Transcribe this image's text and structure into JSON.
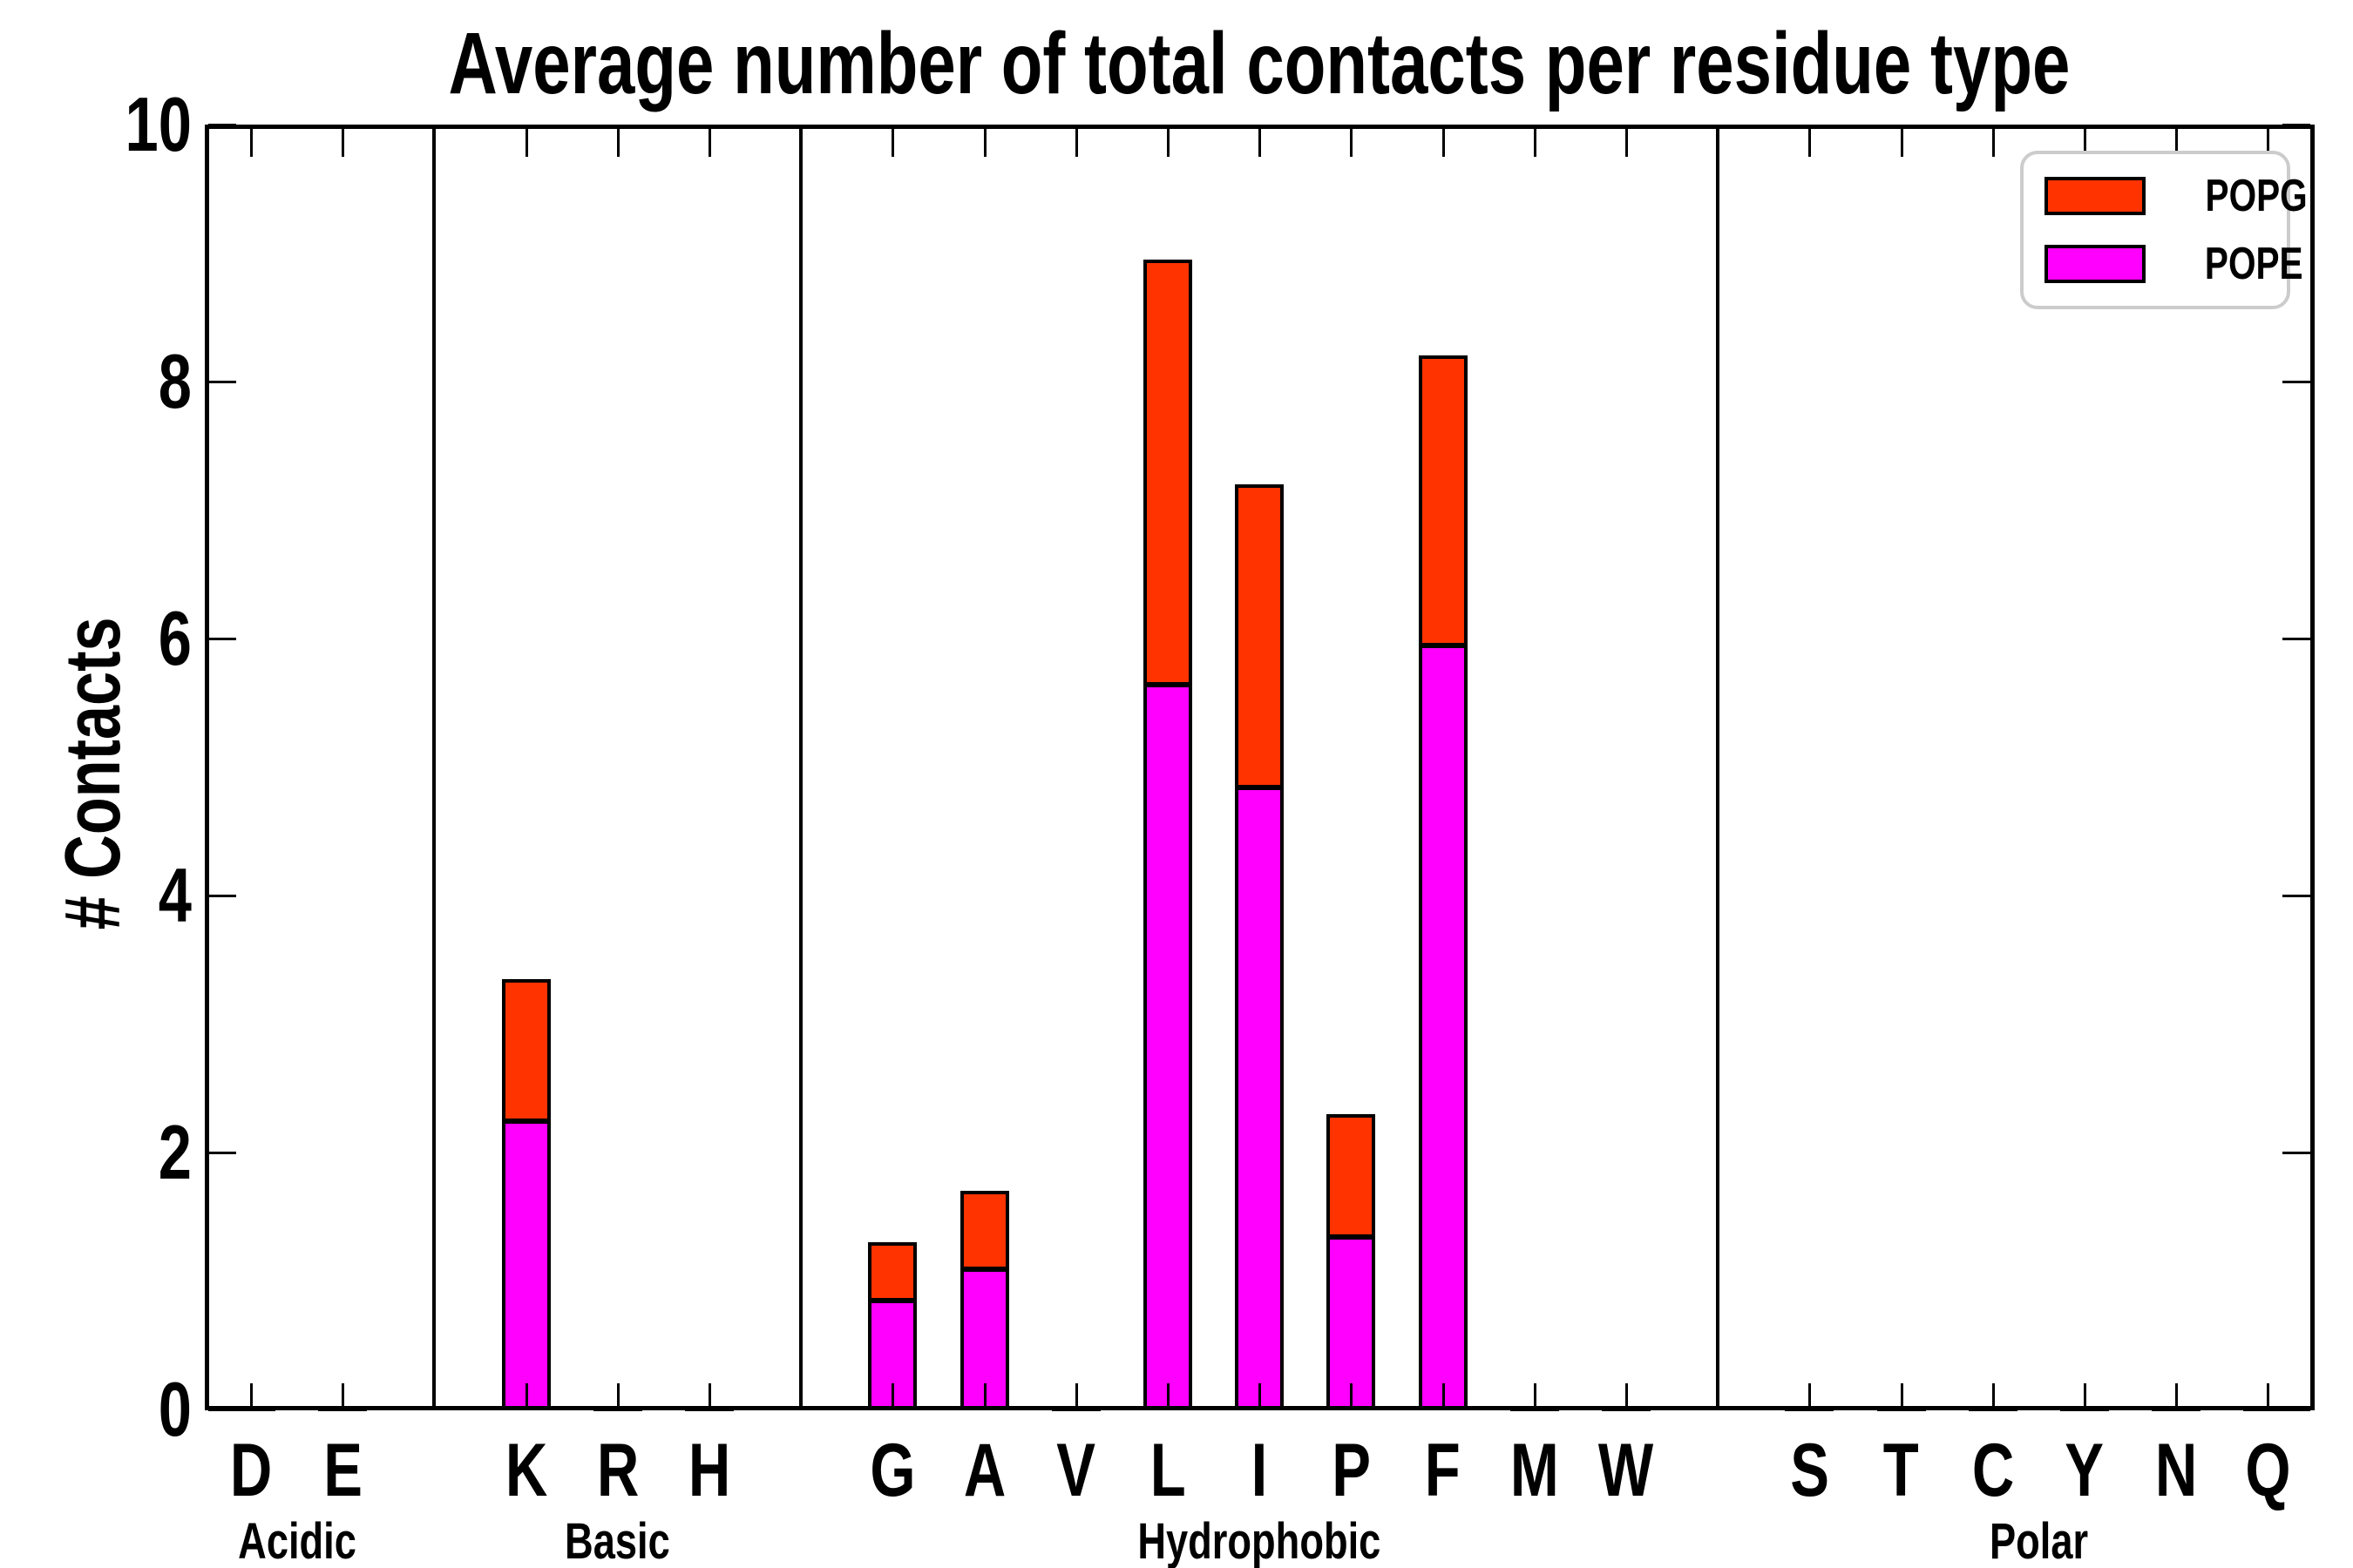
{
  "title": "Average number of total contacts per residue type",
  "y_axis_label": "# Contacts",
  "legend": {
    "items": [
      {
        "label": "POPG",
        "color": "#ff3300"
      },
      {
        "label": "POPE",
        "color": "#ff00ff"
      }
    ],
    "border_color": "#cccccc"
  },
  "colors": {
    "popg": "#ff3300",
    "pope": "#ff00ff",
    "axis": "#000000"
  },
  "chart_data": {
    "type": "bar",
    "stacked": true,
    "title": "Average number of total contacts per residue type",
    "ylabel": "# Contacts",
    "xlabel": "",
    "ylim": [
      0,
      10
    ],
    "yticks": [
      "0",
      "2",
      "4",
      "6",
      "8",
      "10"
    ],
    "grid": false,
    "legend_position": "upper right",
    "categories": [
      "D",
      "E",
      "K",
      "R",
      "H",
      "G",
      "A",
      "V",
      "L",
      "I",
      "P",
      "F",
      "M",
      "W",
      "S",
      "T",
      "C",
      "Y",
      "N",
      "Q"
    ],
    "groups": [
      {
        "name": "Acidic",
        "residues": [
          "D",
          "E"
        ]
      },
      {
        "name": "Basic",
        "residues": [
          "K",
          "R",
          "H"
        ]
      },
      {
        "name": "Hydrophobic",
        "residues": [
          "G",
          "A",
          "V",
          "L",
          "I",
          "P",
          "F",
          "M",
          "W"
        ]
      },
      {
        "name": "Polar",
        "residues": [
          "S",
          "T",
          "C",
          "Y",
          "N",
          "Q"
        ]
      }
    ],
    "series": [
      {
        "name": "POPE",
        "color": "#ff00ff",
        "values": [
          0,
          0,
          2.25,
          0,
          0,
          0.85,
          1.1,
          0,
          5.65,
          4.85,
          1.35,
          5.95,
          0,
          0,
          0,
          0,
          0,
          0,
          0,
          0
        ]
      },
      {
        "name": "POPG",
        "color": "#ff3300",
        "values": [
          0,
          0,
          1.1,
          0,
          0,
          0.45,
          0.6,
          0,
          3.3,
          2.35,
          0.95,
          2.25,
          0,
          0,
          0,
          0,
          0,
          0,
          0,
          0
        ]
      }
    ],
    "totals": [
      0,
      0,
      3.35,
      0,
      0,
      1.3,
      1.7,
      0,
      8.95,
      7.2,
      2.3,
      8.2,
      0,
      0,
      0,
      0,
      0,
      0,
      0,
      0
    ]
  }
}
